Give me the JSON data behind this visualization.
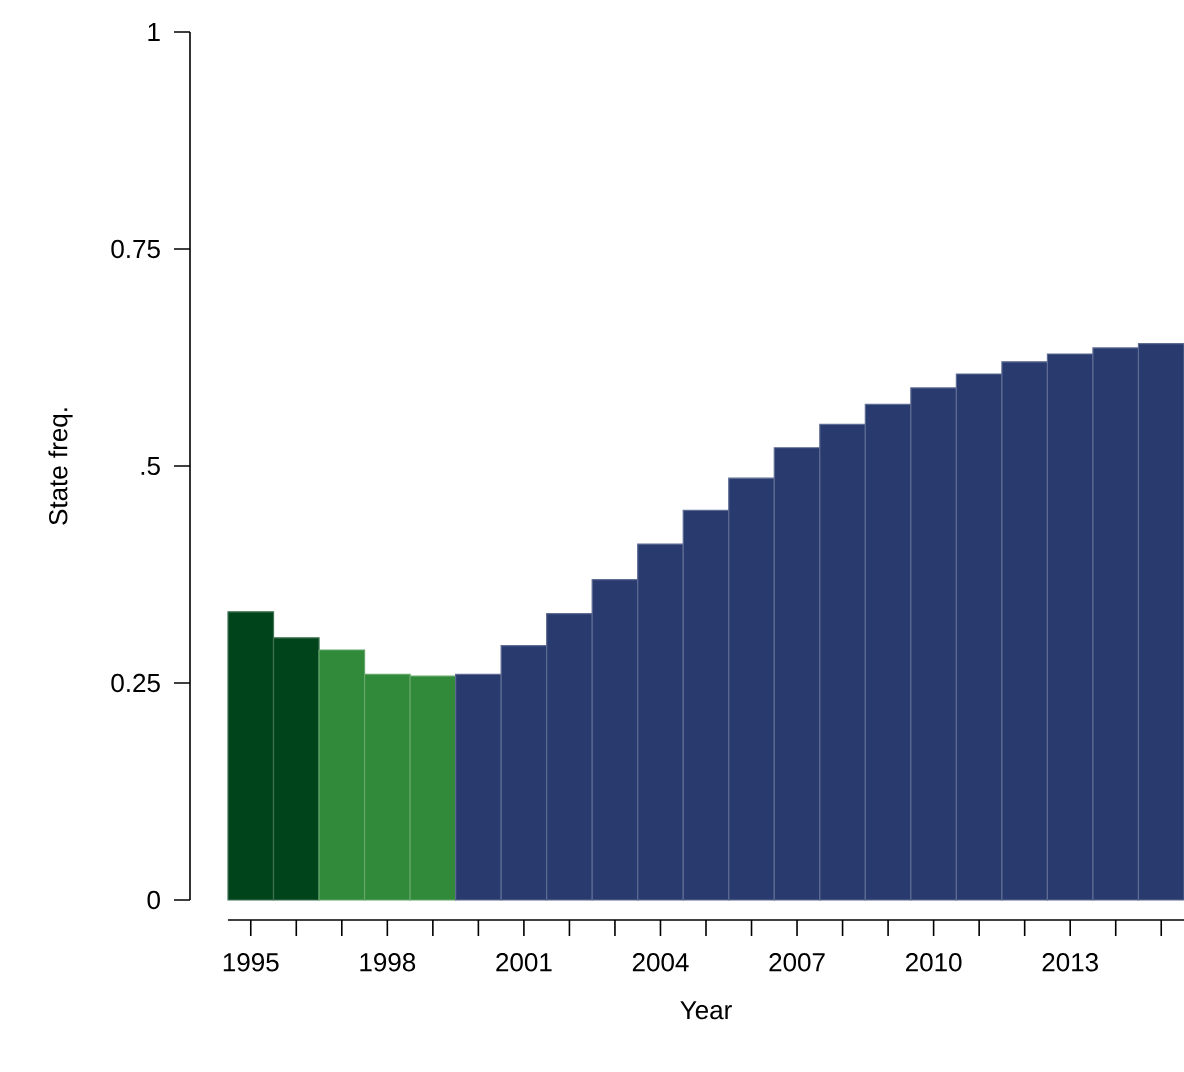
{
  "chart_data": {
    "type": "bar",
    "xlabel": "Year",
    "ylabel": "State freq.",
    "x": [
      1995,
      1996,
      1997,
      1998,
      1999,
      2000,
      2001,
      2002,
      2003,
      2004,
      2005,
      2006,
      2007,
      2008,
      2009,
      2010,
      2011,
      2012,
      2013,
      2014,
      2015
    ],
    "values": [
      0.332,
      0.302,
      0.288,
      0.26,
      0.258,
      0.26,
      0.293,
      0.33,
      0.369,
      0.41,
      0.449,
      0.486,
      0.521,
      0.548,
      0.571,
      0.59,
      0.606,
      0.62,
      0.629,
      0.636,
      0.641
    ],
    "colors": [
      "#00441b",
      "#00441b",
      "#31893a",
      "#31893a",
      "#31893a",
      "#283a6e",
      "#283a6e",
      "#283a6e",
      "#283a6e",
      "#283a6e",
      "#283a6e",
      "#283a6e",
      "#283a6e",
      "#283a6e",
      "#283a6e",
      "#283a6e",
      "#283a6e",
      "#283a6e",
      "#283a6e",
      "#283a6e",
      "#283a6e"
    ],
    "xlim": [
      1994.5,
      2015.5
    ],
    "xticks": [
      1995,
      {
        "value": 1996,
        "label": null
      },
      {
        "value": 1997,
        "label": null
      },
      1998,
      {
        "value": 1999,
        "label": null
      },
      {
        "value": 2000,
        "label": null
      },
      2001,
      {
        "value": 2002,
        "label": null
      },
      {
        "value": 2003,
        "label": null
      },
      2004,
      {
        "value": 2005,
        "label": null
      },
      {
        "value": 2006,
        "label": null
      },
      2007,
      {
        "value": 2008,
        "label": null
      },
      {
        "value": 2009,
        "label": null
      },
      2010,
      {
        "value": 2011,
        "label": null
      },
      {
        "value": 2012,
        "label": null
      },
      2013,
      {
        "value": 2014,
        "label": null
      },
      {
        "value": 2015,
        "label": null
      }
    ],
    "ylim": [
      0,
      1
    ],
    "yticks": [
      0,
      0.25,
      {
        "value": 0.5,
        "label": ".5"
      },
      0.75,
      1
    ],
    "grid": false
  }
}
